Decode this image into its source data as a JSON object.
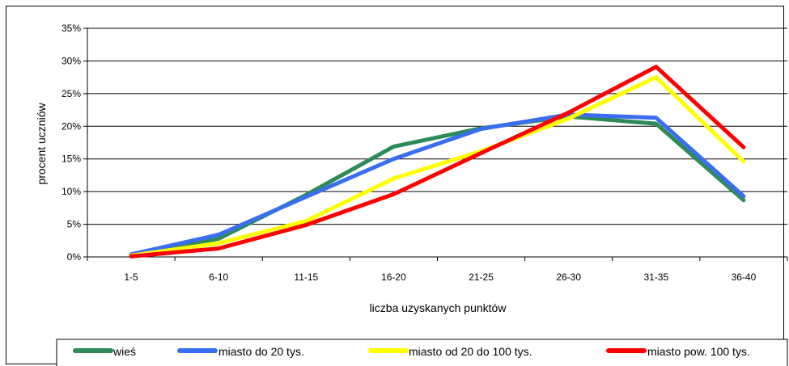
{
  "chart_data": {
    "type": "line",
    "title": "",
    "xlabel": "liczba uzyskanych punktów",
    "ylabel": "procent uczniów",
    "categories": [
      "1-5",
      "6-10",
      "11-15",
      "16-20",
      "21-25",
      "26-30",
      "31-35",
      "36-40"
    ],
    "yticks": [
      "0%",
      "5%",
      "10%",
      "15%",
      "20%",
      "25%",
      "30%",
      "35%"
    ],
    "ylim": [
      0,
      35
    ],
    "grid": true,
    "legend_position": "bottom",
    "series": [
      {
        "name": "wieś",
        "color": "#2e8b57",
        "values": [
          0.3,
          2.8,
          9.5,
          16.9,
          19.7,
          21.5,
          20.4,
          8.7
        ]
      },
      {
        "name": "miasto do 20 tys.",
        "color": "#3a6ef0",
        "values": [
          0.4,
          3.4,
          9.2,
          15.0,
          19.6,
          21.8,
          21.3,
          9.3
        ]
      },
      {
        "name": "miasto od 20 do 100 tys.",
        "color": "#ffff00",
        "values": [
          0.2,
          2.1,
          5.5,
          12.0,
          16.2,
          21.2,
          27.5,
          14.6
        ]
      },
      {
        "name": "miasto pow. 100 tys.",
        "color": "#ff0000",
        "values": [
          0.1,
          1.3,
          4.9,
          9.6,
          15.9,
          22.1,
          29.1,
          16.8
        ]
      }
    ]
  }
}
